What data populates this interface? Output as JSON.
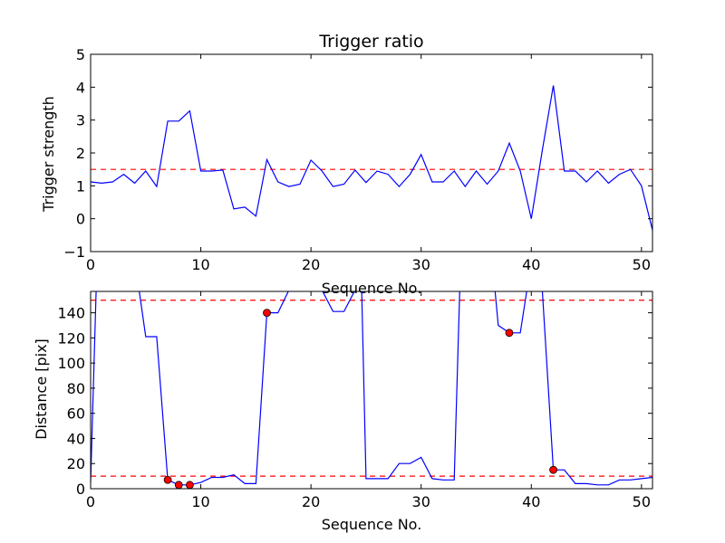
{
  "chart_data": [
    {
      "type": "line",
      "title": "Trigger ratio",
      "xlabel": "Sequence No.",
      "ylabel": "Trigger strength",
      "xlim": [
        0,
        51
      ],
      "ylim": [
        -1,
        5
      ],
      "xticks": [
        0,
        10,
        20,
        30,
        40,
        50
      ],
      "yticks": [
        -1,
        0,
        1,
        2,
        3,
        4,
        5
      ],
      "grid": false,
      "series": [
        {
          "color": "#0000ff",
          "x": [
            0,
            1,
            2,
            3,
            4,
            5,
            6,
            7,
            8,
            9,
            10,
            11,
            12,
            13,
            14,
            15,
            16,
            17,
            18,
            19,
            20,
            21,
            22,
            23,
            24,
            25,
            26,
            27,
            28,
            29,
            30,
            31,
            32,
            33,
            34,
            35,
            36,
            37,
            38,
            39,
            40,
            41,
            42,
            43,
            44,
            45,
            46,
            47,
            48,
            49,
            50,
            51
          ],
          "y": [
            1.12,
            1.08,
            1.12,
            1.35,
            1.08,
            1.45,
            0.98,
            2.97,
            2.97,
            3.28,
            1.45,
            1.45,
            1.48,
            0.3,
            0.35,
            0.08,
            1.8,
            1.12,
            0.98,
            1.05,
            1.78,
            1.45,
            0.98,
            1.05,
            1.48,
            1.1,
            1.45,
            1.35,
            0.98,
            1.35,
            1.95,
            1.12,
            1.12,
            1.45,
            0.98,
            1.45,
            1.05,
            1.45,
            2.3,
            1.45,
            0.0,
            2.08,
            4.05,
            1.45,
            1.45,
            1.12,
            1.45,
            1.08,
            1.35,
            1.5,
            1.0,
            -0.35
          ]
        }
      ],
      "hlines": [
        {
          "y": 1.5,
          "color": "#ff0000",
          "style": "dashed"
        }
      ]
    },
    {
      "type": "line",
      "title": "",
      "xlabel": "Sequence No.",
      "ylabel": "Distance [pix]",
      "xlim": [
        0,
        51
      ],
      "ylim": [
        0,
        157
      ],
      "xticks": [
        0,
        10,
        20,
        30,
        40,
        50
      ],
      "yticks": [
        0,
        20,
        40,
        60,
        80,
        100,
        120,
        140
      ],
      "grid": false,
      "series": [
        {
          "color": "#0000ff",
          "x": [
            0,
            0.5,
            1,
            2,
            3,
            4,
            4.4,
            5,
            6,
            7,
            8,
            9,
            10,
            11,
            12,
            13,
            14,
            15,
            16,
            17,
            18,
            19,
            20,
            21,
            22,
            23,
            24,
            24.6,
            25,
            26,
            27,
            28,
            29,
            30,
            31,
            32,
            33,
            33.5,
            34,
            35,
            36,
            36.7,
            37,
            38,
            39,
            39.6,
            40,
            40.5,
            41,
            42,
            43,
            44,
            45,
            46,
            47,
            48,
            49,
            50,
            51
          ],
          "y": [
            5,
            158,
            158,
            158,
            158,
            158,
            158,
            121,
            121,
            7,
            3,
            3,
            5,
            9,
            9,
            11,
            4,
            4,
            140,
            140,
            158,
            158,
            158,
            158,
            141,
            141,
            158,
            158,
            8,
            8,
            8,
            20,
            20,
            25,
            8,
            7,
            7,
            158,
            158,
            158,
            158,
            158,
            130,
            124,
            124,
            158,
            158,
            158,
            158,
            15,
            15,
            4,
            4,
            3,
            3,
            7,
            7,
            8,
            9
          ]
        }
      ],
      "markers": {
        "color": "#ff0000",
        "points": [
          [
            7,
            7
          ],
          [
            8,
            3
          ],
          [
            9,
            3
          ],
          [
            16,
            140
          ],
          [
            38,
            124
          ],
          [
            42,
            15
          ]
        ]
      },
      "hlines": [
        {
          "y": 150,
          "color": "#ff0000",
          "style": "dashed"
        },
        {
          "y": 10,
          "color": "#ff0000",
          "style": "dashed"
        }
      ]
    }
  ]
}
